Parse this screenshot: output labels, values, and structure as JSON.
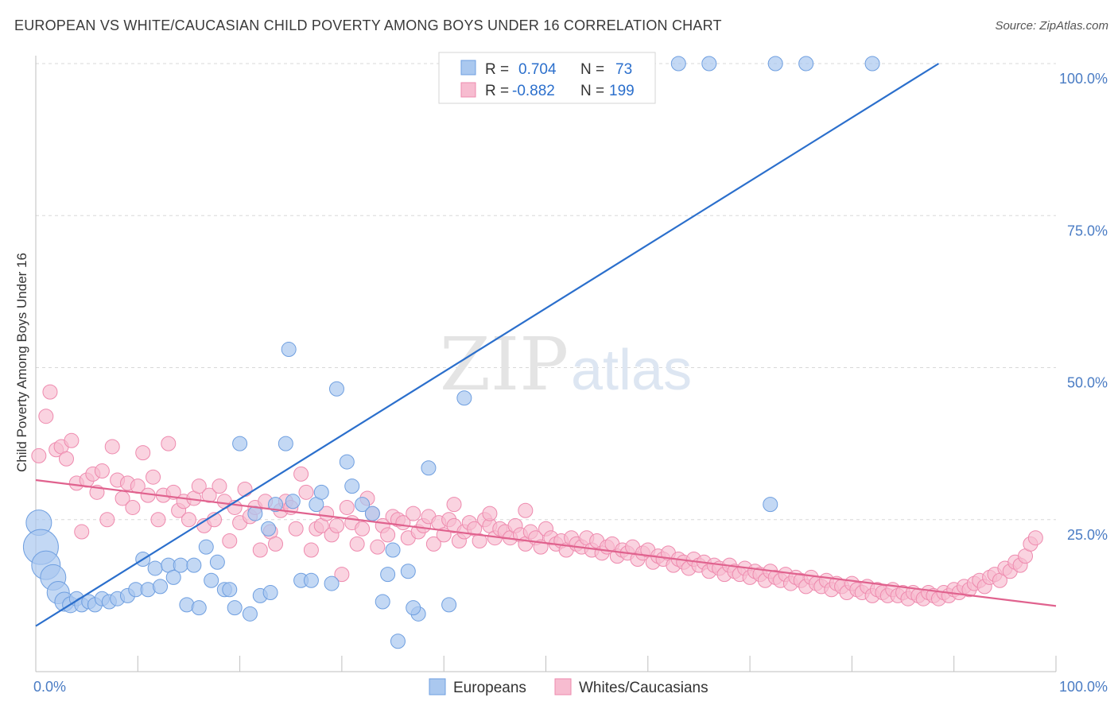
{
  "header": {
    "title": "EUROPEAN VS WHITE/CAUCASIAN CHILD POVERTY AMONG BOYS UNDER 16 CORRELATION CHART",
    "source": "Source: ZipAtlas.com"
  },
  "watermark": {
    "zip": "ZIP",
    "atlas": "atlas"
  },
  "legend": {
    "r_label": "R =",
    "n_label": "N =",
    "europeans": {
      "r": "0.704",
      "n": "73"
    },
    "whites": {
      "r": "-0.882",
      "n": "199"
    }
  },
  "bottom_legend": {
    "europeans": "Europeans",
    "whites": "Whites/Caucasians"
  },
  "colors": {
    "blue_fill": "#aac8ef",
    "blue_stroke": "#6f9fe0",
    "blue_line": "#2b6fcc",
    "pink_fill": "#f7bcd0",
    "pink_stroke": "#ee8aae",
    "pink_line": "#e0628e",
    "tick": "#4a7cc4",
    "grid": "#d8d8d8"
  },
  "chart_data": {
    "type": "scatter",
    "title": "EUROPEAN VS WHITE/CAUCASIAN CHILD POVERTY AMONG BOYS UNDER 16 CORRELATION CHART",
    "xlabel": "",
    "ylabel": "Child Poverty Among Boys Under 16",
    "xlim": [
      0,
      100
    ],
    "ylim": [
      0,
      100
    ],
    "x_tick_labels": [
      "0.0%",
      "100.0%"
    ],
    "y_ticks": [
      {
        "value": 25,
        "label": "25.0%"
      },
      {
        "value": 50,
        "label": "50.0%"
      },
      {
        "value": 75,
        "label": "75.0%"
      },
      {
        "value": 100,
        "label": "100.0%"
      }
    ],
    "grid": true,
    "legend_position": "top-center",
    "series": [
      {
        "name": "Europeans",
        "r": 0.704,
        "n": 73,
        "trend": [
          [
            0,
            7.5
          ],
          [
            88.5,
            100
          ]
        ],
        "points": [
          [
            0.3,
            24.5,
            16
          ],
          [
            0.5,
            20.5,
            22
          ],
          [
            1.0,
            17.5,
            18
          ],
          [
            1.7,
            15.5,
            16
          ],
          [
            2.2,
            13,
            14
          ],
          [
            2.8,
            11.5,
            12
          ],
          [
            3.4,
            11,
            10
          ],
          [
            4.0,
            12,
            9
          ],
          [
            4.5,
            11,
            9
          ],
          [
            5.2,
            11.5,
            9
          ],
          [
            5.8,
            11,
            9
          ],
          [
            6.5,
            12,
            9
          ],
          [
            7.2,
            11.5,
            9
          ],
          [
            8.0,
            12,
            9
          ],
          [
            9.0,
            12.5,
            9
          ],
          [
            9.8,
            13.5,
            9
          ],
          [
            10.5,
            18.5,
            9
          ],
          [
            11.0,
            13.5,
            9
          ],
          [
            11.7,
            17,
            9
          ],
          [
            12.2,
            14,
            9
          ],
          [
            13.0,
            17.5,
            9
          ],
          [
            13.5,
            15.5,
            9
          ],
          [
            14.2,
            17.5,
            9
          ],
          [
            14.8,
            11,
            9
          ],
          [
            15.5,
            17.5,
            9
          ],
          [
            16.0,
            10.5,
            9
          ],
          [
            16.7,
            20.5,
            9
          ],
          [
            17.2,
            15,
            9
          ],
          [
            17.8,
            18,
            9
          ],
          [
            18.5,
            13.5,
            9
          ],
          [
            19.0,
            13.5,
            9
          ],
          [
            19.5,
            10.5,
            9
          ],
          [
            20.0,
            37.5,
            9
          ],
          [
            21.0,
            9.5,
            9
          ],
          [
            21.5,
            26,
            9
          ],
          [
            22.0,
            12.5,
            9
          ],
          [
            22.8,
            23.5,
            9
          ],
          [
            23.5,
            27.5,
            9
          ],
          [
            24.5,
            37.5,
            9
          ],
          [
            24.8,
            53,
            9
          ],
          [
            25.2,
            28,
            9
          ],
          [
            26.0,
            15,
            9
          ],
          [
            27.0,
            15,
            9
          ],
          [
            27.5,
            27.5,
            9
          ],
          [
            28.0,
            29.5,
            9
          ],
          [
            29.0,
            14.5,
            9
          ],
          [
            29.5,
            46.5,
            9
          ],
          [
            30.5,
            34.5,
            9
          ],
          [
            31.0,
            30.5,
            9
          ],
          [
            32.0,
            27.5,
            9
          ],
          [
            33.0,
            26,
            9
          ],
          [
            34.0,
            11.5,
            9
          ],
          [
            34.5,
            16,
            9
          ],
          [
            35.0,
            20,
            9
          ],
          [
            35.5,
            5,
            9
          ],
          [
            36.5,
            16.5,
            9
          ],
          [
            37.5,
            9.5,
            9
          ],
          [
            38.5,
            33.5,
            9
          ],
          [
            42.0,
            45,
            9
          ],
          [
            46.5,
            100,
            9
          ],
          [
            48.5,
            100,
            9
          ],
          [
            52.5,
            100,
            9
          ],
          [
            54.5,
            100,
            9
          ],
          [
            58.5,
            100,
            9
          ],
          [
            63.0,
            100,
            9
          ],
          [
            66.0,
            100,
            9
          ],
          [
            72.0,
            27.5,
            9
          ],
          [
            72.5,
            100,
            9
          ],
          [
            75.5,
            100,
            9
          ],
          [
            82.0,
            100,
            9
          ],
          [
            37.0,
            10.5,
            9
          ],
          [
            40.5,
            11,
            9
          ],
          [
            23.0,
            13,
            9
          ]
        ]
      },
      {
        "name": "Whites/Caucasians",
        "r": -0.882,
        "n": 199,
        "trend": [
          [
            0,
            31.5
          ],
          [
            100,
            10.8
          ]
        ],
        "points": [
          [
            0.3,
            35.5
          ],
          [
            1.0,
            42
          ],
          [
            1.4,
            46
          ],
          [
            2.0,
            36.5
          ],
          [
            2.5,
            37
          ],
          [
            3.0,
            35
          ],
          [
            3.5,
            38
          ],
          [
            4.0,
            31
          ],
          [
            4.5,
            23
          ],
          [
            5.0,
            31.5
          ],
          [
            5.6,
            32.5
          ],
          [
            6.0,
            29.5
          ],
          [
            6.5,
            33
          ],
          [
            7.0,
            25
          ],
          [
            7.5,
            37
          ],
          [
            8.0,
            31.5
          ],
          [
            8.5,
            28.5
          ],
          [
            9.0,
            31
          ],
          [
            9.5,
            27
          ],
          [
            10.0,
            30.5
          ],
          [
            10.5,
            36
          ],
          [
            11.0,
            29
          ],
          [
            11.5,
            32
          ],
          [
            12.0,
            25
          ],
          [
            12.5,
            29
          ],
          [
            13.0,
            37.5
          ],
          [
            13.5,
            29.5
          ],
          [
            14.0,
            26.5
          ],
          [
            14.5,
            28
          ],
          [
            15.0,
            25
          ],
          [
            15.5,
            28.5
          ],
          [
            16.0,
            30.5
          ],
          [
            16.5,
            24
          ],
          [
            17.0,
            29
          ],
          [
            17.5,
            25
          ],
          [
            18.0,
            30.5
          ],
          [
            18.5,
            28
          ],
          [
            19.0,
            21.5
          ],
          [
            19.5,
            27
          ],
          [
            20.0,
            24.5
          ],
          [
            20.5,
            30
          ],
          [
            21.0,
            25.5
          ],
          [
            21.5,
            27
          ],
          [
            22.0,
            20
          ],
          [
            22.5,
            28
          ],
          [
            23.0,
            23
          ],
          [
            23.5,
            21
          ],
          [
            24.0,
            26.5
          ],
          [
            24.5,
            28
          ],
          [
            25.0,
            27
          ],
          [
            25.5,
            23.5
          ],
          [
            26.0,
            32.5
          ],
          [
            26.5,
            29.5
          ],
          [
            27.0,
            20
          ],
          [
            27.5,
            23.5
          ],
          [
            28.0,
            24
          ],
          [
            28.5,
            26
          ],
          [
            29.0,
            22.5
          ],
          [
            29.5,
            24
          ],
          [
            30.0,
            16
          ],
          [
            30.5,
            27
          ],
          [
            31.0,
            24.5
          ],
          [
            31.5,
            21
          ],
          [
            32.0,
            23.5
          ],
          [
            32.5,
            28.5
          ],
          [
            33.0,
            26
          ],
          [
            33.5,
            20.5
          ],
          [
            34.0,
            24
          ],
          [
            34.5,
            22.5
          ],
          [
            35.0,
            25.5
          ],
          [
            35.5,
            25
          ],
          [
            36.0,
            24.5
          ],
          [
            36.5,
            22
          ],
          [
            37.0,
            26
          ],
          [
            37.5,
            23
          ],
          [
            38.0,
            24
          ],
          [
            38.5,
            25.5
          ],
          [
            39.0,
            21
          ],
          [
            39.5,
            24.5
          ],
          [
            40.0,
            22.5
          ],
          [
            40.5,
            25
          ],
          [
            41.0,
            24
          ],
          [
            41.5,
            21.5
          ],
          [
            42.0,
            23
          ],
          [
            42.5,
            24.5
          ],
          [
            43.0,
            23.5
          ],
          [
            43.5,
            21.5
          ],
          [
            44.0,
            25
          ],
          [
            44.5,
            24
          ],
          [
            45.0,
            22
          ],
          [
            45.5,
            23.5
          ],
          [
            46.0,
            23
          ],
          [
            46.5,
            22
          ],
          [
            47.0,
            24
          ],
          [
            47.5,
            22.5
          ],
          [
            48.0,
            21
          ],
          [
            48.5,
            23
          ],
          [
            49.0,
            22
          ],
          [
            49.5,
            20.5
          ],
          [
            50.0,
            23.5
          ],
          [
            50.5,
            22
          ],
          [
            51.0,
            21
          ],
          [
            51.5,
            21.5
          ],
          [
            52.0,
            20
          ],
          [
            52.5,
            22
          ],
          [
            53.0,
            21
          ],
          [
            53.5,
            20.5
          ],
          [
            54.0,
            22
          ],
          [
            54.5,
            20
          ],
          [
            55.0,
            21.5
          ],
          [
            55.5,
            19.5
          ],
          [
            56.0,
            20.5
          ],
          [
            56.5,
            21
          ],
          [
            57.0,
            19
          ],
          [
            57.5,
            20
          ],
          [
            58.0,
            19.5
          ],
          [
            58.5,
            20.5
          ],
          [
            59.0,
            18.5
          ],
          [
            59.5,
            19.5
          ],
          [
            60.0,
            20
          ],
          [
            60.5,
            18
          ],
          [
            61.0,
            19
          ],
          [
            61.5,
            18.5
          ],
          [
            62.0,
            19.5
          ],
          [
            62.5,
            17.5
          ],
          [
            63.0,
            18.5
          ],
          [
            63.5,
            18
          ],
          [
            64.0,
            17
          ],
          [
            64.5,
            18.5
          ],
          [
            65.0,
            17.5
          ],
          [
            65.5,
            18
          ],
          [
            66.0,
            16.5
          ],
          [
            66.5,
            17.5
          ],
          [
            67.0,
            17
          ],
          [
            67.5,
            16
          ],
          [
            68.0,
            17.5
          ],
          [
            68.5,
            16.5
          ],
          [
            69.0,
            16
          ],
          [
            69.5,
            17
          ],
          [
            70.0,
            15.5
          ],
          [
            70.5,
            16.5
          ],
          [
            71.0,
            16
          ],
          [
            71.5,
            15
          ],
          [
            72.0,
            16.5
          ],
          [
            72.5,
            15.5
          ],
          [
            73.0,
            15
          ],
          [
            73.5,
            16
          ],
          [
            74.0,
            14.5
          ],
          [
            74.5,
            15.5
          ],
          [
            75.0,
            15
          ],
          [
            75.5,
            14
          ],
          [
            76.0,
            15.5
          ],
          [
            76.5,
            14.5
          ],
          [
            77.0,
            14
          ],
          [
            77.5,
            15
          ],
          [
            78.0,
            13.5
          ],
          [
            78.5,
            14.5
          ],
          [
            79.0,
            14
          ],
          [
            79.5,
            13
          ],
          [
            80.0,
            14.5
          ],
          [
            80.5,
            13.5
          ],
          [
            81.0,
            13
          ],
          [
            81.5,
            14
          ],
          [
            82.0,
            12.5
          ],
          [
            82.5,
            13.5
          ],
          [
            83.0,
            13
          ],
          [
            83.5,
            12.5
          ],
          [
            84.0,
            13.5
          ],
          [
            84.5,
            12.5
          ],
          [
            85.0,
            13
          ],
          [
            85.5,
            12
          ],
          [
            86.0,
            13
          ],
          [
            86.5,
            12.5
          ],
          [
            87.0,
            12
          ],
          [
            87.5,
            13
          ],
          [
            88.0,
            12.5
          ],
          [
            88.5,
            12
          ],
          [
            89.0,
            13
          ],
          [
            89.5,
            12.5
          ],
          [
            90.0,
            13.5
          ],
          [
            90.5,
            13
          ],
          [
            91.0,
            14
          ],
          [
            91.5,
            13.5
          ],
          [
            92.0,
            14.5
          ],
          [
            92.5,
            15
          ],
          [
            93.0,
            14
          ],
          [
            93.5,
            15.5
          ],
          [
            94.0,
            16
          ],
          [
            94.5,
            15
          ],
          [
            95.0,
            17
          ],
          [
            95.5,
            16.5
          ],
          [
            96.0,
            18
          ],
          [
            96.5,
            17.5
          ],
          [
            97.0,
            19
          ],
          [
            97.5,
            21
          ],
          [
            98.0,
            22
          ],
          [
            48.0,
            26.5
          ],
          [
            44.5,
            26
          ],
          [
            41.0,
            27.5
          ]
        ]
      }
    ]
  }
}
